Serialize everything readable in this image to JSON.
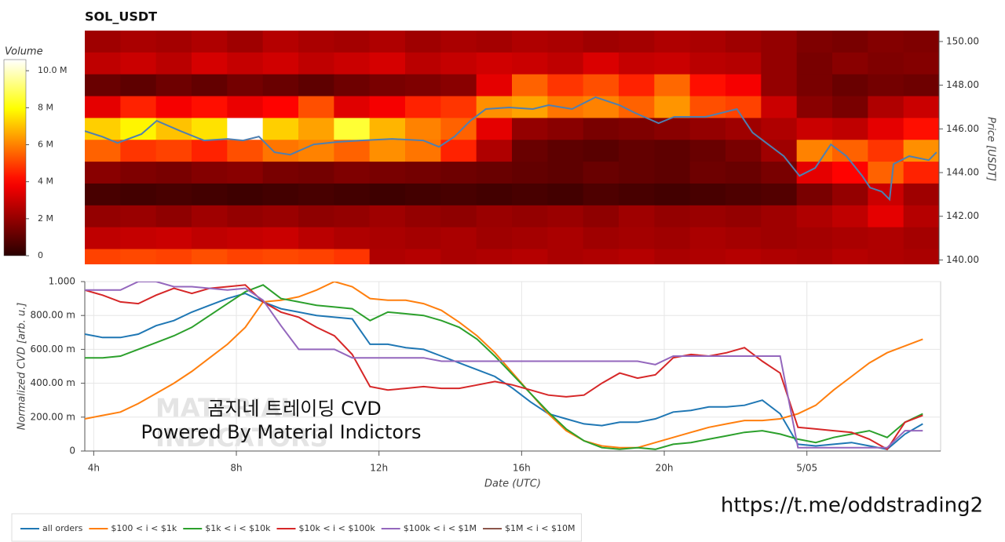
{
  "chart_data": [
    {
      "type": "heatmap",
      "title": "SOL_USDT",
      "colormap": "hot",
      "x": [
        3.75,
        4.75,
        5.75,
        6.75,
        7.75,
        8.75,
        9.75,
        10.75,
        11.75,
        12.75,
        13.75,
        14.75,
        15.75,
        16.75,
        17.75,
        18.75,
        19.75,
        20.75,
        21.75,
        22.75,
        23.75,
        24.75,
        25.75,
        26.75
      ],
      "y": [
        150,
        149,
        148,
        147,
        146,
        145,
        144,
        143,
        142,
        141,
        140
      ],
      "values": [
        [
          2.2,
          2.4,
          2.3,
          2.5,
          2.2,
          2.6,
          2.4,
          2.3,
          2.5,
          2.2,
          2.4,
          2.3,
          2.5,
          2.4,
          2.2,
          2.3,
          2.5,
          2.4,
          2.2,
          2.0,
          1.6,
          1.5,
          1.7,
          1.6
        ],
        [
          2.8,
          3.0,
          2.7,
          3.2,
          2.9,
          3.1,
          2.8,
          3.0,
          3.2,
          2.7,
          2.9,
          3.1,
          3.0,
          2.8,
          3.3,
          2.9,
          3.0,
          2.7,
          2.6,
          2.0,
          1.5,
          1.8,
          1.6,
          1.7
        ],
        [
          1.2,
          1.0,
          1.3,
          1.1,
          1.4,
          1.2,
          1.0,
          1.3,
          1.5,
          1.6,
          1.8,
          3.5,
          5.5,
          4.8,
          5.2,
          4.5,
          5.6,
          4.2,
          3.8,
          2.0,
          1.5,
          1.2,
          1.4,
          1.3
        ],
        [
          3.5,
          4.5,
          3.8,
          4.2,
          3.6,
          4.0,
          5.2,
          3.4,
          3.8,
          4.5,
          4.8,
          6.2,
          6.5,
          5.8,
          6.0,
          5.5,
          6.3,
          5.2,
          5.0,
          3.0,
          1.8,
          1.5,
          2.5,
          3.0
        ],
        [
          7.2,
          7.8,
          7.0,
          7.5,
          10.8,
          7.2,
          6.5,
          8.5,
          6.8,
          6.0,
          5.5,
          3.5,
          2.0,
          1.8,
          1.5,
          1.6,
          1.8,
          2.0,
          2.2,
          2.5,
          3.0,
          2.8,
          3.5,
          4.2
        ],
        [
          5.5,
          4.8,
          5.0,
          4.5,
          5.2,
          5.8,
          6.0,
          5.5,
          6.2,
          5.8,
          4.5,
          2.5,
          1.2,
          1.0,
          0.9,
          1.1,
          1.0,
          1.2,
          1.5,
          2.2,
          6.0,
          5.5,
          4.8,
          6.2
        ],
        [
          1.8,
          1.6,
          1.5,
          1.7,
          1.8,
          1.5,
          1.4,
          1.6,
          1.5,
          1.4,
          1.3,
          1.2,
          1.1,
          1.0,
          1.2,
          1.1,
          1.0,
          1.3,
          1.2,
          1.5,
          3.5,
          4.0,
          5.5,
          4.5
        ],
        [
          0.6,
          0.5,
          0.6,
          0.5,
          0.4,
          0.5,
          0.6,
          0.5,
          0.4,
          0.5,
          0.6,
          0.5,
          0.6,
          0.5,
          0.7,
          0.6,
          0.5,
          0.6,
          0.7,
          0.8,
          1.5,
          2.0,
          3.0,
          2.2
        ],
        [
          2.0,
          2.1,
          1.9,
          2.2,
          2.0,
          2.1,
          1.9,
          2.0,
          2.2,
          2.0,
          1.9,
          2.1,
          2.0,
          2.1,
          1.9,
          2.2,
          2.0,
          2.1,
          2.0,
          2.2,
          2.5,
          2.8,
          3.5,
          2.6
        ],
        [
          2.8,
          2.9,
          3.0,
          2.8,
          2.9,
          3.0,
          2.7,
          2.5,
          2.4,
          2.3,
          2.4,
          2.2,
          2.3,
          2.4,
          2.2,
          2.3,
          2.2,
          2.4,
          2.3,
          2.2,
          2.3,
          2.4,
          2.5,
          2.3
        ],
        [
          5.0,
          5.1,
          5.0,
          5.2,
          5.0,
          5.1,
          5.0,
          4.8,
          2.5,
          2.6,
          2.4,
          2.5,
          2.6,
          2.4,
          2.5,
          2.6,
          2.4,
          2.5,
          2.6,
          2.5,
          2.4,
          2.6,
          2.5,
          2.4
        ]
      ],
      "xlim": [
        3.75,
        27.75
      ],
      "ylim": [
        139.8,
        150.5
      ],
      "ylabel": "Price [USDT]",
      "yticks": [
        {
          "value": 140,
          "label": "140.00"
        },
        {
          "value": 142,
          "label": "142.00"
        },
        {
          "value": 144,
          "label": "144.00"
        },
        {
          "value": 146,
          "label": "146.00"
        },
        {
          "value": 148,
          "label": "148.00"
        },
        {
          "value": 150,
          "label": "150.00"
        }
      ],
      "colorbar": {
        "title": "Volume",
        "clim": [
          0,
          10.6
        ],
        "ticks": [
          0,
          {
            "value": 2,
            "label": "2 M"
          },
          {
            "value": 4,
            "label": "4 M"
          },
          {
            "value": 6,
            "label": "6 M"
          },
          {
            "value": 8,
            "label": "8 M"
          },
          {
            "value": 10,
            "label": "10.0 M"
          }
        ]
      },
      "line": {
        "color": "#4f7fb0",
        "x": [
          3.75,
          4.23,
          4.67,
          5.34,
          5.77,
          6.44,
          7.1,
          7.76,
          8.2,
          8.64,
          9.08,
          9.52,
          10.18,
          10.84,
          11.5,
          12.38,
          13.26,
          13.7,
          14.14,
          14.58,
          15.02,
          15.68,
          16.34,
          16.78,
          17.44,
          18.1,
          18.77,
          19.21,
          19.87,
          20.31,
          21.19,
          22.07,
          22.51,
          22.95,
          23.39,
          23.83,
          24.27,
          24.71,
          25.15,
          25.59,
          25.81,
          26.14,
          26.36,
          26.47,
          26.91,
          27.46,
          27.68
        ],
        "values": [
          145.9,
          145.65,
          145.36,
          145.76,
          146.37,
          145.9,
          145.47,
          145.54,
          145.47,
          145.65,
          144.93,
          144.82,
          145.29,
          145.4,
          145.47,
          145.54,
          145.47,
          145.18,
          145.65,
          146.37,
          146.91,
          146.98,
          146.91,
          147.09,
          146.91,
          147.45,
          147.09,
          146.73,
          146.26,
          146.55,
          146.55,
          146.91,
          145.83,
          145.29,
          144.75,
          143.85,
          144.21,
          145.29,
          144.75,
          143.85,
          143.31,
          143.13,
          142.77,
          144.39,
          144.75,
          144.57,
          144.93
        ]
      }
    },
    {
      "type": "line",
      "xlabel": "Date (UTC)",
      "ylabel": "Normalized CVD [arb. u.]",
      "grid": true,
      "legend": "bottom",
      "xlim": [
        3.75,
        27.75
      ],
      "ylim": [
        0,
        1
      ],
      "xticks": [
        {
          "value": 4,
          "label": "4h"
        },
        {
          "value": 8,
          "label": "8h"
        },
        {
          "value": 12,
          "label": "12h"
        },
        {
          "value": 16,
          "label": "16h"
        },
        {
          "value": 20,
          "label": "20h"
        },
        {
          "value": 24,
          "label": "5/05"
        }
      ],
      "yticks": [
        0,
        {
          "value": 0.2,
          "label": "200.00 m"
        },
        {
          "value": 0.4,
          "label": "400.00 m"
        },
        {
          "value": 0.6,
          "label": "600.00 m"
        },
        {
          "value": 0.8,
          "label": "800.00 m"
        },
        {
          "value": 1,
          "label": "1.000"
        }
      ],
      "x": [
        3.75,
        4.25,
        4.75,
        5.25,
        5.75,
        6.25,
        6.75,
        7.25,
        7.75,
        8.25,
        8.75,
        9.25,
        9.75,
        10.25,
        10.75,
        11.25,
        11.75,
        12.25,
        12.75,
        13.25,
        13.75,
        14.25,
        14.75,
        15.25,
        15.75,
        16.25,
        16.75,
        17.25,
        17.75,
        18.25,
        18.75,
        19.25,
        19.75,
        20.25,
        20.75,
        21.25,
        21.75,
        22.25,
        22.75,
        23.25,
        23.75,
        24.25,
        24.75,
        25.25,
        25.75,
        26.25,
        26.75,
        27.25
      ],
      "series": [
        {
          "name": "all orders",
          "color": "#1f77b4",
          "values": [
            0.69,
            0.67,
            0.67,
            0.69,
            0.74,
            0.77,
            0.82,
            0.86,
            0.9,
            0.93,
            0.88,
            0.84,
            0.82,
            0.8,
            0.79,
            0.78,
            0.63,
            0.63,
            0.61,
            0.6,
            0.56,
            0.52,
            0.48,
            0.44,
            0.37,
            0.29,
            0.22,
            0.19,
            0.16,
            0.15,
            0.17,
            0.17,
            0.19,
            0.23,
            0.24,
            0.26,
            0.26,
            0.27,
            0.3,
            0.22,
            0.04,
            0.03,
            0.04,
            0.05,
            0.03,
            0.01,
            0.1,
            0.16
          ]
        },
        {
          "name": "$100 < i < $1k",
          "color": "#ff7f0e",
          "values": [
            0.19,
            0.21,
            0.23,
            0.28,
            0.34,
            0.4,
            0.47,
            0.55,
            0.63,
            0.73,
            0.88,
            0.89,
            0.91,
            0.95,
            1.0,
            0.97,
            0.9,
            0.89,
            0.89,
            0.87,
            0.83,
            0.76,
            0.68,
            0.58,
            0.46,
            0.34,
            0.22,
            0.12,
            0.06,
            0.03,
            0.02,
            0.02,
            0.05,
            0.08,
            0.11,
            0.14,
            0.16,
            0.18,
            0.18,
            0.19,
            0.22,
            0.27,
            0.36,
            0.44,
            0.52,
            0.58,
            0.62,
            0.66
          ]
        },
        {
          "name": "$1k < i < $10k",
          "color": "#2ca02c",
          "values": [
            0.55,
            0.55,
            0.56,
            0.6,
            0.64,
            0.68,
            0.73,
            0.8,
            0.87,
            0.94,
            0.98,
            0.9,
            0.88,
            0.86,
            0.85,
            0.84,
            0.77,
            0.82,
            0.81,
            0.8,
            0.77,
            0.73,
            0.66,
            0.56,
            0.45,
            0.34,
            0.23,
            0.13,
            0.06,
            0.02,
            0.01,
            0.02,
            0.01,
            0.04,
            0.05,
            0.07,
            0.09,
            0.11,
            0.12,
            0.1,
            0.07,
            0.05,
            0.08,
            0.1,
            0.12,
            0.08,
            0.17,
            0.22
          ]
        },
        {
          "name": "$10k < i < $100k",
          "color": "#d62728",
          "values": [
            0.95,
            0.92,
            0.88,
            0.87,
            0.92,
            0.96,
            0.93,
            0.96,
            0.97,
            0.98,
            0.88,
            0.82,
            0.79,
            0.73,
            0.68,
            0.57,
            0.38,
            0.36,
            0.37,
            0.38,
            0.37,
            0.37,
            0.39,
            0.41,
            0.39,
            0.36,
            0.33,
            0.32,
            0.33,
            0.4,
            0.46,
            0.43,
            0.45,
            0.55,
            0.57,
            0.56,
            0.58,
            0.61,
            0.53,
            0.46,
            0.14,
            0.13,
            0.12,
            0.11,
            0.07,
            0.01,
            0.17,
            0.21
          ]
        },
        {
          "name": "$100k < i < $1M",
          "color": "#9467bd",
          "values": [
            0.95,
            0.95,
            0.95,
            1.0,
            1.0,
            0.97,
            0.97,
            0.96,
            0.95,
            0.96,
            0.89,
            0.74,
            0.6,
            0.6,
            0.6,
            0.55,
            0.55,
            0.55,
            0.55,
            0.55,
            0.53,
            0.53,
            0.53,
            0.53,
            0.53,
            0.53,
            0.53,
            0.53,
            0.53,
            0.53,
            0.53,
            0.53,
            0.51,
            0.56,
            0.56,
            0.56,
            0.56,
            0.56,
            0.56,
            0.56,
            0.02,
            0.02,
            0.02,
            0.02,
            0.02,
            0.02,
            0.12,
            0.12
          ]
        },
        {
          "name": "$1M < i < $10M",
          "color": "#8c564b",
          "values": [
            null,
            null,
            null,
            null,
            null,
            null,
            null,
            null,
            null,
            null,
            null,
            null,
            null,
            null,
            null,
            null,
            null,
            null,
            null,
            null,
            null,
            null,
            null,
            null,
            null,
            null,
            null,
            null,
            null,
            null,
            null,
            null,
            null,
            null,
            null,
            null,
            null,
            null,
            null,
            null,
            null,
            null,
            null,
            null,
            null,
            null,
            null,
            null
          ]
        }
      ]
    }
  ],
  "overlay": {
    "caption": "곰지네 트레이딩 CVD",
    "powered": "Powered By Material Indictors",
    "watermark": [
      "MATERIAL",
      "INDICATORS"
    ],
    "url": "https://t.me/oddstrading2"
  }
}
